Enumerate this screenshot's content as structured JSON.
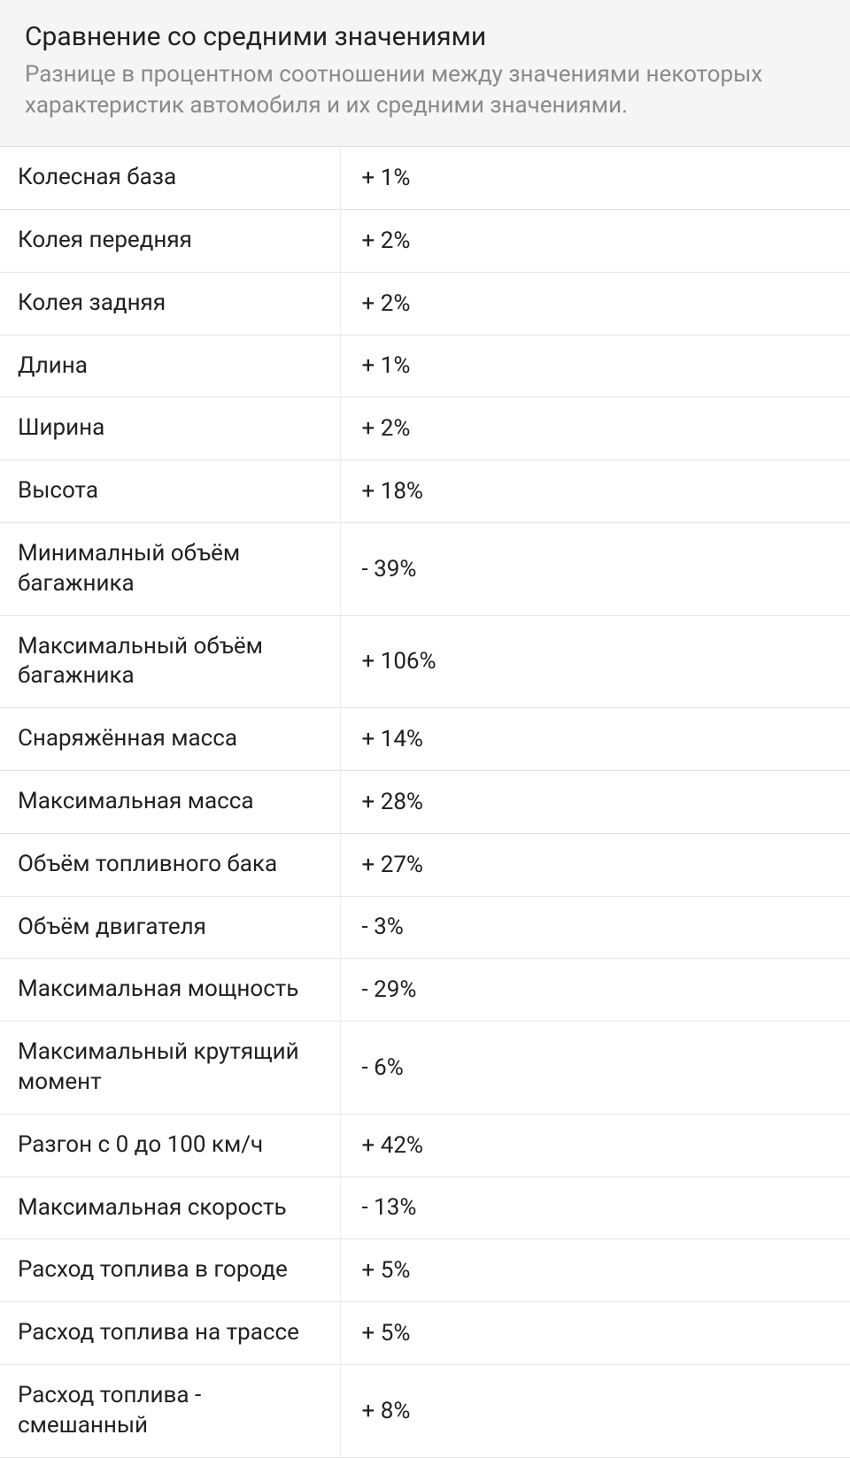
{
  "header": {
    "title": "Сравнение со средними значениями",
    "subtitle": "Разнице в процентном соотношении между значениями некоторых характеристик автомобиля и их средними значениями."
  },
  "rows": [
    {
      "label": "Колесная база",
      "value": "+ 1%"
    },
    {
      "label": "Колея передняя",
      "value": "+ 2%"
    },
    {
      "label": "Колея задняя",
      "value": "+ 2%"
    },
    {
      "label": "Длина",
      "value": "+ 1%"
    },
    {
      "label": "Ширина",
      "value": "+ 2%"
    },
    {
      "label": "Высота",
      "value": "+ 18%"
    },
    {
      "label": "Минималный объём багажника",
      "value": "- 39%"
    },
    {
      "label": "Максимальный объём багажника",
      "value": "+ 106%"
    },
    {
      "label": "Снаряжённая масса",
      "value": "+ 14%"
    },
    {
      "label": "Максимальная масса",
      "value": "+ 28%"
    },
    {
      "label": "Объём топливного бака",
      "value": "+ 27%"
    },
    {
      "label": "Объём двигателя",
      "value": "- 3%"
    },
    {
      "label": "Максимальная мощность",
      "value": "- 29%"
    },
    {
      "label": "Максимальный крутящий момент",
      "value": "- 6%"
    },
    {
      "label": "Разгон с 0 до 100 км/ч",
      "value": "+ 42%"
    },
    {
      "label": "Максимальная скорость",
      "value": "- 13%"
    },
    {
      "label": "Расход топлива в городе",
      "value": "+ 5%"
    },
    {
      "label": "Расход топлива на трассе",
      "value": "+ 5%"
    },
    {
      "label": "Расход топлива - смешанный",
      "value": "+ 8%"
    }
  ],
  "style": {
    "header_bg": "#f5f5f5",
    "title_color": "#212121",
    "subtitle_color": "#8a8a8a",
    "text_color": "#212121",
    "row_border_color": "#e3e3e3",
    "col_divider_color": "#ededed",
    "title_fontsize": 30,
    "subtitle_fontsize": 26,
    "cell_fontsize": 26,
    "label_col_width_pct": 40
  }
}
